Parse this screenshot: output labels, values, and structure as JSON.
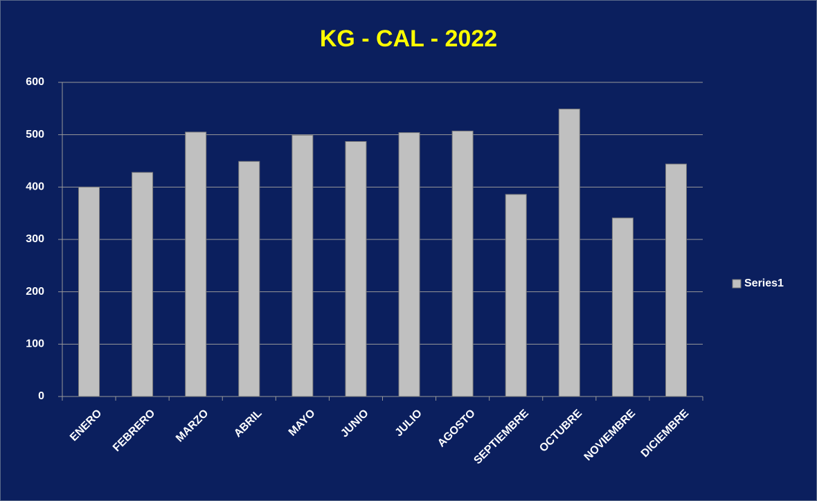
{
  "chart_data": {
    "type": "bar",
    "title": "KG - CAL - 2022",
    "categories": [
      "ENERO",
      "FEBRERO",
      "MARZO",
      "ABRIL",
      "MAYO",
      "JUNIO",
      "JULIO",
      "AGOSTO",
      "SEPTIEMBRE",
      "OCTUBRE",
      "NOVIEMBRE",
      "DICIEMBRE"
    ],
    "series": [
      {
        "name": "Series1",
        "color": "#c0c0c0",
        "values": [
          400,
          428,
          505,
          449,
          499,
          487,
          504,
          507,
          386,
          549,
          341,
          444
        ]
      }
    ],
    "ylim": [
      0,
      600
    ],
    "yticks": [
      0,
      100,
      200,
      300,
      400,
      500,
      600
    ],
    "grid": true,
    "legend": "right"
  }
}
